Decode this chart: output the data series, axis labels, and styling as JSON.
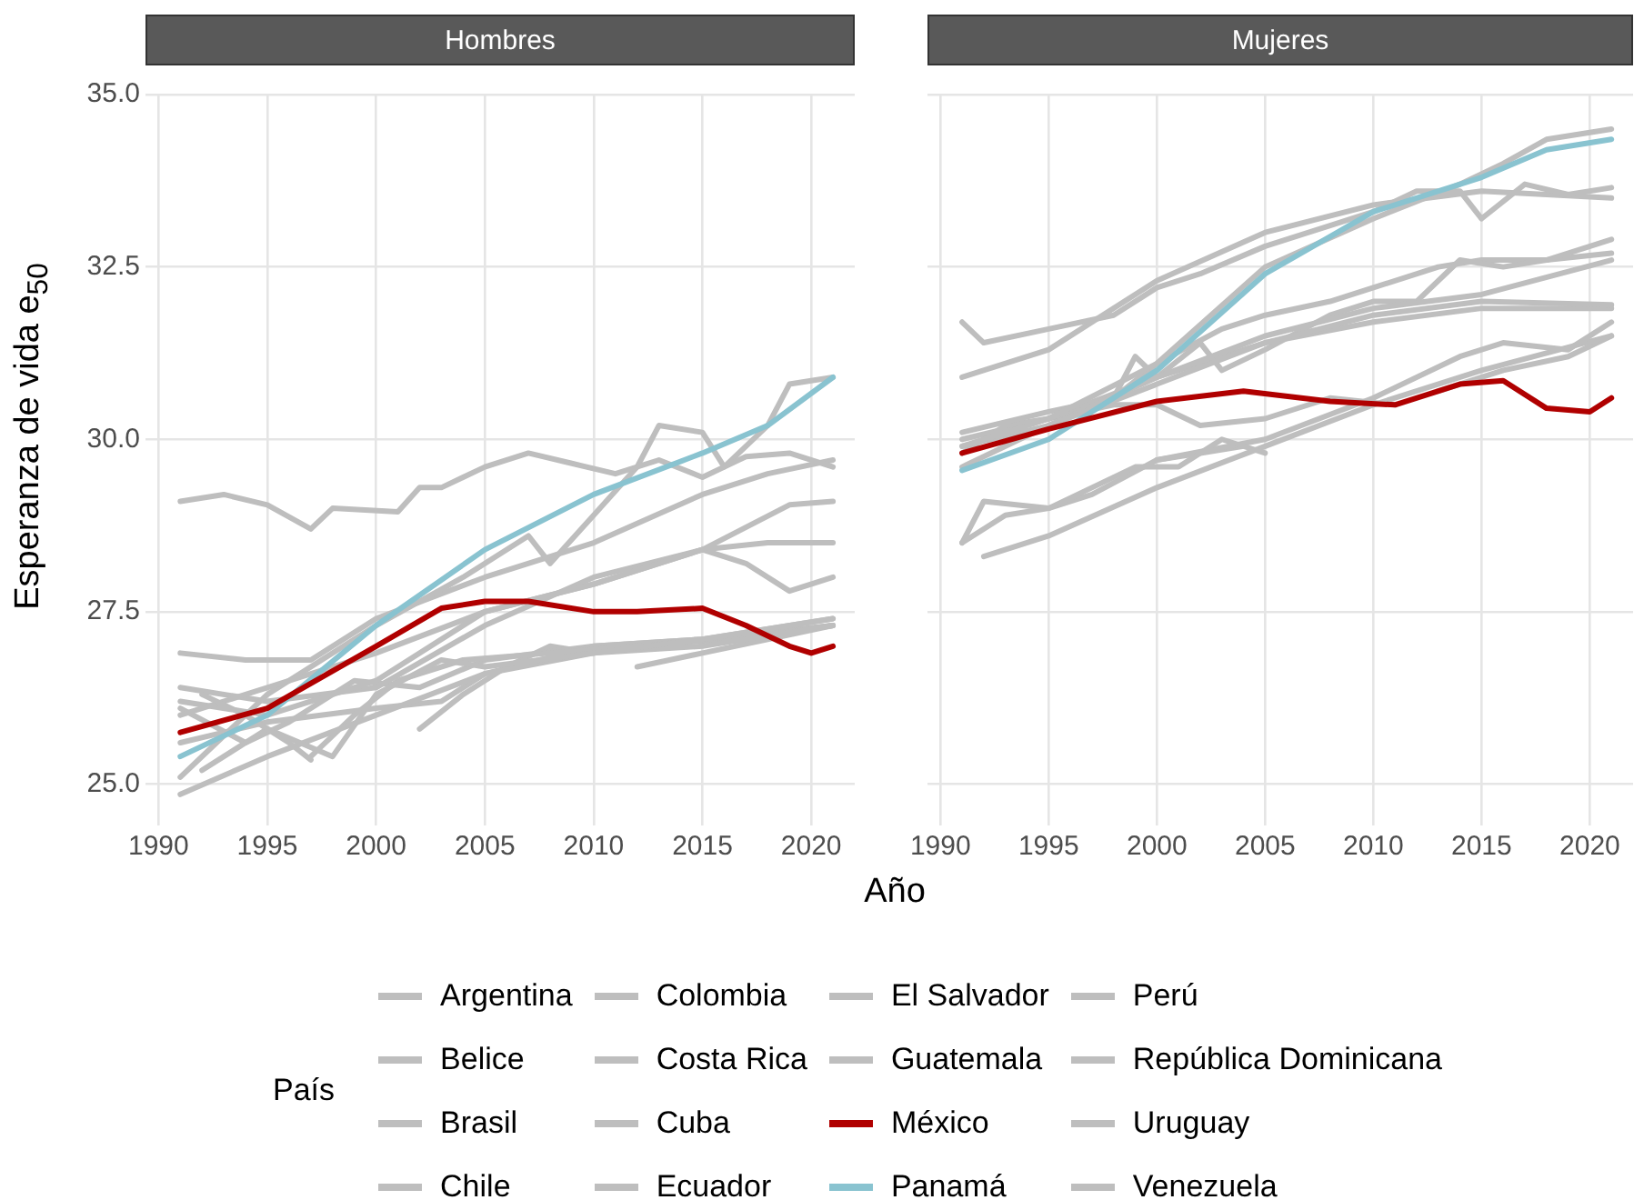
{
  "chart_data": [
    {
      "type": "line",
      "title": "Hombres",
      "xlabel": "Año",
      "ylabel": "Esperanza de vida  e$_{50}$",
      "legend_title": "País",
      "legend": "bottom",
      "grid": true,
      "line_style": "solid",
      "marker": "none",
      "xlim": [
        1989.4,
        2022
      ],
      "xticks": [
        1990,
        1995,
        2000,
        2005,
        2010,
        2015,
        2020
      ],
      "ylim": [
        24.4,
        35
      ],
      "yticks": [
        {
          "value": 25,
          "label": "25.0"
        },
        {
          "value": 27.5,
          "label": "27.5"
        },
        {
          "value": 30,
          "label": "30.0"
        },
        {
          "value": 32.5,
          "label": "32.5"
        },
        {
          "value": 35,
          "label": "35.0"
        }
      ],
      "series": [
        {
          "name": "Argentina",
          "color": "#bebebe",
          "x": [
            1991,
            1993,
            1995,
            1997,
            1998,
            2001,
            2002,
            2003,
            2005,
            2007,
            2009,
            2011,
            2013,
            2015,
            2017,
            2019,
            2021
          ],
          "values": [
            29.1,
            29.2,
            29.05,
            28.7,
            29.0,
            28.95,
            29.3,
            29.3,
            29.6,
            29.8,
            29.65,
            29.5,
            29.7,
            29.45,
            29.75,
            29.8,
            29.6
          ]
        },
        {
          "name": "Belice",
          "color": "#bebebe",
          "x": [
            1992,
            1994,
            1996,
            1997
          ],
          "values": [
            26.3,
            26.0,
            25.6,
            25.35
          ]
        },
        {
          "name": "Brasil",
          "color": "#bebebe",
          "x": [
            1991,
            1995,
            2000,
            2005,
            2010,
            2015,
            2019,
            2021
          ],
          "values": [
            26.0,
            26.4,
            26.9,
            27.5,
            27.9,
            28.4,
            29.05,
            29.1
          ]
        },
        {
          "name": "Chile",
          "color": "#bebebe",
          "x": [
            1991,
            1995,
            2000,
            2004,
            2007,
            2008,
            2010,
            2012,
            2013,
            2015,
            2016,
            2018,
            2019,
            2021
          ],
          "values": [
            25.1,
            26.3,
            27.3,
            28.0,
            28.6,
            28.2,
            28.9,
            29.6,
            30.2,
            30.1,
            29.6,
            30.2,
            30.8,
            30.9
          ]
        },
        {
          "name": "Colombia",
          "color": "#bebebe",
          "x": [
            1991,
            1995,
            2000,
            2005,
            2010,
            2015,
            2017,
            2019,
            2021
          ],
          "values": [
            26.2,
            26.0,
            26.5,
            27.5,
            27.9,
            28.4,
            28.2,
            27.8,
            28.0
          ]
        },
        {
          "name": "Costa Rica",
          "color": "#bebebe",
          "x": [
            1991,
            1994,
            1997,
            2000,
            2005,
            2010,
            2015,
            2018,
            2021
          ],
          "values": [
            26.9,
            26.8,
            26.8,
            27.4,
            28.0,
            28.5,
            29.2,
            29.5,
            29.7
          ]
        },
        {
          "name": "Cuba",
          "color": "#bebebe",
          "x": [
            1991,
            1995,
            2000,
            2005,
            2010,
            2015,
            2018,
            2021
          ],
          "values": [
            26.4,
            26.2,
            26.4,
            27.3,
            28.0,
            28.4,
            28.5,
            28.5
          ]
        },
        {
          "name": "Ecuador",
          "color": "#bebebe",
          "x": [
            1992,
            1995,
            1998,
            2000,
            2003,
            2005,
            2010,
            2015,
            2021
          ],
          "values": [
            25.2,
            25.8,
            25.4,
            26.3,
            26.8,
            26.7,
            26.9,
            27.1,
            27.4
          ]
        },
        {
          "name": "El Salvador",
          "color": "#bebebe",
          "x": [
            1991,
            1995,
            2000,
            2005,
            2010,
            2015,
            2021
          ],
          "values": [
            24.85,
            25.4,
            26.0,
            26.6,
            26.9,
            27.0,
            27.3
          ]
        },
        {
          "name": "Guatemala",
          "color": "#bebebe",
          "x": [
            1997,
            1999,
            2001,
            2004,
            2008,
            2012,
            2016,
            2021
          ],
          "values": [
            25.4,
            26.0,
            26.5,
            26.8,
            26.9,
            27.0,
            27.1,
            27.3
          ]
        },
        {
          "name": "México",
          "color": "#b00000",
          "x": [
            1991,
            1995,
            2000,
            2003,
            2005,
            2007,
            2010,
            2012,
            2015,
            2017,
            2019,
            2020,
            2021
          ],
          "values": [
            25.75,
            26.1,
            27.0,
            27.55,
            27.65,
            27.65,
            27.5,
            27.5,
            27.55,
            27.3,
            27.0,
            26.9,
            27.0
          ]
        },
        {
          "name": "Panamá",
          "color": "#89c3d0",
          "x": [
            1991,
            1995,
            2000,
            2005,
            2010,
            2015,
            2018,
            2021
          ],
          "values": [
            25.4,
            26.0,
            27.3,
            28.4,
            29.2,
            29.8,
            30.2,
            30.9
          ]
        },
        {
          "name": "Perú",
          "color": "#bebebe",
          "x": [
            1991,
            1995,
            2000,
            2003,
            2005,
            2010,
            2015,
            2021
          ],
          "values": [
            25.6,
            25.9,
            26.1,
            26.2,
            26.6,
            27.0,
            27.1,
            27.3
          ]
        },
        {
          "name": "República Dominicana",
          "color": "#bebebe",
          "x": [
            1991,
            1994,
            1996,
            1999,
            2002,
            2005,
            2010,
            2015,
            2021
          ],
          "values": [
            26.1,
            25.6,
            25.9,
            26.5,
            26.4,
            26.8,
            27.0,
            27.1,
            27.4
          ]
        },
        {
          "name": "Uruguay",
          "color": "#bebebe",
          "x": [
            2012,
            2015,
            2018,
            2021
          ],
          "values": [
            26.7,
            26.9,
            27.1,
            27.3
          ]
        },
        {
          "name": "Venezuela",
          "color": "#bebebe",
          "x": [
            2002,
            2004,
            2006,
            2008,
            2010
          ],
          "values": [
            25.8,
            26.3,
            26.7,
            27.0,
            26.9
          ]
        }
      ]
    },
    {
      "type": "line",
      "title": "Mujeres",
      "legend": "bottom",
      "grid": true,
      "line_style": "solid",
      "marker": "none",
      "tick_labels": "x",
      "xlim": [
        1989.4,
        2022
      ],
      "xticks": [
        1990,
        1995,
        2000,
        2005,
        2010,
        2015,
        2020
      ],
      "ylim": [
        24.4,
        35
      ],
      "yticks": [
        25,
        27.5,
        30,
        32.5,
        35
      ],
      "series": [
        {
          "name": "Argentina",
          "color": "#bebebe",
          "x": [
            1991,
            1992,
            1995,
            1998,
            2000,
            2002,
            2005,
            2008,
            2010,
            2012,
            2014,
            2015,
            2017,
            2019,
            2021
          ],
          "values": [
            31.7,
            31.4,
            31.6,
            31.8,
            32.2,
            32.4,
            32.8,
            33.1,
            33.3,
            33.6,
            33.6,
            33.2,
            33.7,
            33.55,
            33.65
          ]
        },
        {
          "name": "Belice",
          "color": "#bebebe",
          "x": [
            1991,
            1993,
            1995,
            1997,
            1999,
            2001,
            2003,
            2005
          ],
          "values": [
            28.5,
            28.9,
            29.0,
            29.3,
            29.6,
            29.6,
            30.0,
            29.8
          ]
        },
        {
          "name": "Brasil",
          "color": "#bebebe",
          "x": [
            1991,
            1995,
            2000,
            2005,
            2010,
            2015,
            2021
          ],
          "values": [
            29.6,
            30.2,
            30.8,
            31.4,
            31.8,
            32.0,
            31.95
          ]
        },
        {
          "name": "Chile",
          "color": "#bebebe",
          "x": [
            1991,
            1995,
            2000,
            2005,
            2010,
            2014,
            2016,
            2018,
            2021
          ],
          "values": [
            29.9,
            30.3,
            31.1,
            32.5,
            33.2,
            33.7,
            34.0,
            34.35,
            34.5
          ]
        },
        {
          "name": "Colombia",
          "color": "#bebebe",
          "x": [
            1991,
            1995,
            2000,
            2005,
            2010,
            2015,
            2021
          ],
          "values": [
            29.9,
            30.2,
            30.9,
            31.5,
            31.9,
            32.1,
            32.6
          ]
        },
        {
          "name": "Costa Rica",
          "color": "#bebebe",
          "x": [
            1991,
            1995,
            2000,
            2005,
            2010,
            2015,
            2021
          ],
          "values": [
            30.9,
            31.3,
            32.3,
            33.0,
            33.4,
            33.6,
            33.5
          ]
        },
        {
          "name": "Cuba",
          "color": "#bebebe",
          "x": [
            1991,
            1995,
            1998,
            1999,
            2000,
            2002,
            2003,
            2005,
            2008,
            2010,
            2012,
            2014,
            2016,
            2018,
            2021
          ],
          "values": [
            30.1,
            30.4,
            30.6,
            31.2,
            30.9,
            31.4,
            31.0,
            31.3,
            31.8,
            32.0,
            32.0,
            32.6,
            32.5,
            32.6,
            32.9
          ]
        },
        {
          "name": "Ecuador",
          "color": "#bebebe",
          "x": [
            1991,
            1992,
            1995,
            1997,
            2000,
            2005,
            2010,
            2014,
            2016,
            2019,
            2021
          ],
          "values": [
            28.5,
            29.1,
            29.0,
            29.2,
            29.7,
            30.0,
            30.6,
            31.2,
            31.4,
            31.3,
            31.7
          ]
        },
        {
          "name": "El Salvador",
          "color": "#bebebe",
          "x": [
            1992,
            1995,
            2000,
            2005,
            2010,
            2015,
            2021
          ],
          "values": [
            28.3,
            28.6,
            29.3,
            29.9,
            30.5,
            31.0,
            31.5
          ]
        },
        {
          "name": "Guatemala",
          "color": "#bebebe",
          "x": [
            2000,
            2002,
            2004
          ],
          "values": [
            29.7,
            29.8,
            29.9
          ]
        },
        {
          "name": "México",
          "color": "#b00000",
          "x": [
            1991,
            1995,
            2000,
            2004,
            2008,
            2011,
            2014,
            2016,
            2018,
            2020,
            2021
          ],
          "values": [
            29.8,
            30.15,
            30.55,
            30.7,
            30.55,
            30.5,
            30.8,
            30.85,
            30.45,
            30.4,
            30.6
          ]
        },
        {
          "name": "Panamá",
          "color": "#89c3d0",
          "x": [
            1991,
            1995,
            2000,
            2005,
            2010,
            2015,
            2018,
            2021
          ],
          "values": [
            29.55,
            30.0,
            31.0,
            32.4,
            33.3,
            33.8,
            34.2,
            34.35
          ]
        },
        {
          "name": "Perú",
          "color": "#bebebe",
          "x": [
            2013,
            2016,
            2019,
            2021
          ],
          "values": [
            30.7,
            31.0,
            31.2,
            31.5
          ]
        },
        {
          "name": "República Dominicana",
          "color": "#bebebe",
          "x": [
            1991,
            1993,
            1995,
            1998,
            2000,
            2003,
            2005,
            2008,
            2010,
            2013,
            2015,
            2018,
            2021
          ],
          "values": [
            29.8,
            30.2,
            30.3,
            30.6,
            31.1,
            31.6,
            31.8,
            32.0,
            32.2,
            32.5,
            32.6,
            32.6,
            32.7
          ]
        },
        {
          "name": "Uruguay",
          "color": "#bebebe",
          "x": [
            1991,
            1995,
            2000,
            2005,
            2010,
            2015,
            2021
          ],
          "values": [
            30.0,
            30.3,
            30.9,
            31.4,
            31.7,
            31.9,
            31.9
          ]
        },
        {
          "name": "Venezuela",
          "color": "#bebebe",
          "x": [
            1992,
            1995,
            1998,
            2000,
            2002,
            2005,
            2008,
            2011
          ],
          "values": [
            30.0,
            30.3,
            30.5,
            30.5,
            30.2,
            30.3,
            30.6,
            30.5
          ]
        }
      ]
    }
  ]
}
